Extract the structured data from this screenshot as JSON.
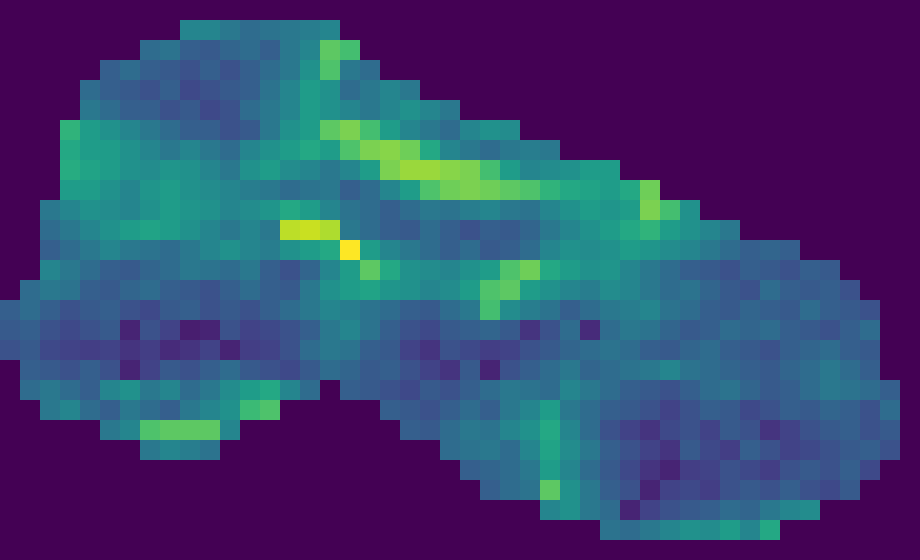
{
  "chart_data": {
    "type": "heatmap",
    "tick_labels": false,
    "zlim": [
      0,
      100
    ],
    "z": [
      [
        0,
        0,
        0,
        0,
        0,
        0,
        0,
        0,
        0,
        0,
        0,
        0,
        0,
        0,
        0,
        0,
        0,
        0,
        0,
        0,
        0,
        0,
        0,
        0,
        0,
        0,
        0,
        0,
        0,
        0,
        0,
        0,
        0,
        0,
        0,
        0,
        0,
        0,
        0,
        0,
        0,
        0,
        0,
        0,
        0,
        0
      ],
      [
        0,
        0,
        0,
        0,
        0,
        0,
        0,
        0,
        0,
        45,
        45,
        40,
        35,
        38,
        40,
        42,
        45,
        0,
        0,
        0,
        0,
        0,
        0,
        0,
        0,
        0,
        0,
        0,
        0,
        0,
        0,
        0,
        0,
        0,
        0,
        0,
        0,
        0,
        0,
        0,
        0,
        0,
        0,
        0,
        0,
        0
      ],
      [
        0,
        0,
        0,
        0,
        0,
        0,
        0,
        35,
        38,
        30,
        28,
        32,
        35,
        30,
        40,
        45,
        75,
        70,
        0,
        0,
        0,
        0,
        0,
        0,
        0,
        0,
        0,
        0,
        0,
        0,
        0,
        0,
        0,
        0,
        0,
        0,
        0,
        0,
        0,
        0,
        0,
        0,
        0,
        0,
        0,
        0
      ],
      [
        0,
        0,
        0,
        0,
        0,
        30,
        35,
        30,
        28,
        25,
        30,
        25,
        30,
        35,
        40,
        50,
        72,
        40,
        35,
        0,
        0,
        0,
        0,
        0,
        0,
        0,
        0,
        0,
        0,
        0,
        0,
        0,
        0,
        0,
        0,
        0,
        0,
        0,
        0,
        0,
        0,
        0,
        0,
        0,
        0,
        0
      ],
      [
        0,
        0,
        0,
        0,
        35,
        30,
        28,
        25,
        30,
        22,
        25,
        28,
        30,
        38,
        45,
        55,
        50,
        35,
        40,
        45,
        40,
        0,
        0,
        0,
        0,
        0,
        0,
        0,
        0,
        0,
        0,
        0,
        0,
        0,
        0,
        0,
        0,
        0,
        0,
        0,
        0,
        0,
        0,
        0,
        0,
        0
      ],
      [
        0,
        0,
        0,
        0,
        40,
        35,
        30,
        30,
        25,
        28,
        22,
        25,
        35,
        40,
        45,
        55,
        50,
        45,
        40,
        45,
        50,
        45,
        40,
        0,
        0,
        0,
        0,
        0,
        0,
        0,
        0,
        0,
        0,
        0,
        0,
        0,
        0,
        0,
        0,
        0,
        0,
        0,
        0,
        0,
        0,
        0
      ],
      [
        0,
        0,
        0,
        65,
        55,
        50,
        45,
        40,
        35,
        30,
        30,
        25,
        28,
        40,
        50,
        55,
        75,
        80,
        70,
        55,
        45,
        40,
        35,
        45,
        50,
        48,
        0,
        0,
        0,
        0,
        0,
        0,
        0,
        0,
        0,
        0,
        0,
        0,
        0,
        0,
        0,
        0,
        0,
        0,
        0,
        0
      ],
      [
        0,
        0,
        0,
        60,
        55,
        55,
        50,
        45,
        40,
        45,
        40,
        35,
        45,
        50,
        55,
        60,
        55,
        72,
        80,
        82,
        78,
        60,
        45,
        40,
        35,
        40,
        42,
        40,
        0,
        0,
        0,
        0,
        0,
        0,
        0,
        0,
        0,
        0,
        0,
        0,
        0,
        0,
        0,
        0,
        0,
        0
      ],
      [
        0,
        0,
        0,
        62,
        58,
        55,
        50,
        48,
        52,
        50,
        45,
        40,
        50,
        55,
        48,
        45,
        40,
        45,
        55,
        80,
        85,
        85,
        82,
        80,
        70,
        55,
        45,
        48,
        50,
        55,
        55,
        0,
        0,
        0,
        0,
        0,
        0,
        0,
        0,
        0,
        0,
        0,
        0,
        0,
        0,
        0
      ],
      [
        0,
        0,
        0,
        55,
        55,
        50,
        45,
        52,
        55,
        50,
        48,
        45,
        42,
        40,
        35,
        38,
        40,
        30,
        35,
        45,
        55,
        72,
        78,
        80,
        78,
        75,
        72,
        65,
        60,
        58,
        55,
        60,
        78,
        0,
        0,
        0,
        0,
        0,
        0,
        0,
        0,
        0,
        0,
        0,
        0,
        0
      ],
      [
        0,
        0,
        40,
        45,
        50,
        48,
        45,
        50,
        55,
        52,
        50,
        45,
        48,
        52,
        60,
        55,
        45,
        38,
        35,
        30,
        35,
        40,
        38,
        42,
        45,
        40,
        38,
        45,
        50,
        55,
        52,
        55,
        80,
        70,
        50,
        0,
        0,
        0,
        0,
        0,
        0,
        0,
        0,
        0,
        0,
        0
      ],
      [
        0,
        0,
        35,
        40,
        45,
        50,
        55,
        58,
        55,
        50,
        45,
        40,
        45,
        40,
        90,
        92,
        88,
        40,
        35,
        30,
        28,
        35,
        30,
        25,
        30,
        28,
        32,
        40,
        45,
        50,
        55,
        60,
        65,
        55,
        50,
        45,
        40,
        0,
        0,
        0,
        0,
        0,
        0,
        0,
        0,
        0
      ],
      [
        0,
        0,
        30,
        35,
        40,
        45,
        40,
        38,
        35,
        40,
        45,
        50,
        45,
        42,
        50,
        55,
        60,
        100,
        55,
        45,
        40,
        35,
        30,
        35,
        28,
        30,
        35,
        45,
        50,
        48,
        50,
        55,
        52,
        48,
        45,
        40,
        35,
        30,
        32,
        30,
        0,
        0,
        0,
        0,
        0,
        0
      ],
      [
        0,
        0,
        45,
        40,
        35,
        30,
        28,
        32,
        35,
        40,
        38,
        35,
        40,
        30,
        25,
        32,
        45,
        55,
        75,
        60,
        50,
        48,
        45,
        50,
        55,
        72,
        78,
        60,
        55,
        50,
        52,
        45,
        40,
        35,
        30,
        28,
        25,
        30,
        28,
        25,
        30,
        28,
        0,
        0,
        0,
        0
      ],
      [
        0,
        35,
        40,
        38,
        30,
        28,
        32,
        35,
        30,
        28,
        25,
        30,
        35,
        30,
        28,
        40,
        50,
        55,
        58,
        52,
        50,
        45,
        48,
        55,
        72,
        75,
        55,
        50,
        45,
        42,
        48,
        45,
        40,
        35,
        38,
        32,
        28,
        25,
        35,
        30,
        28,
        30,
        25,
        0,
        0,
        0
      ],
      [
        30,
        35,
        30,
        25,
        28,
        30,
        25,
        22,
        28,
        30,
        25,
        28,
        25,
        30,
        35,
        40,
        45,
        42,
        38,
        35,
        30,
        28,
        35,
        40,
        70,
        48,
        42,
        38,
        30,
        35,
        40,
        42,
        45,
        38,
        35,
        30,
        28,
        32,
        30,
        28,
        35,
        30,
        28,
        25,
        0,
        0
      ],
      [
        28,
        30,
        25,
        22,
        25,
        28,
        10,
        25,
        20,
        8,
        10,
        25,
        20,
        22,
        25,
        30,
        40,
        45,
        38,
        30,
        25,
        22,
        28,
        30,
        32,
        28,
        15,
        25,
        35,
        12,
        35,
        40,
        38,
        32,
        28,
        30,
        35,
        32,
        35,
        30,
        28,
        25,
        30,
        35,
        0,
        0
      ],
      [
        25,
        28,
        22,
        20,
        18,
        20,
        15,
        18,
        12,
        15,
        20,
        10,
        18,
        20,
        25,
        35,
        40,
        38,
        30,
        28,
        20,
        15,
        25,
        22,
        18,
        20,
        25,
        28,
        32,
        35,
        38,
        35,
        30,
        28,
        32,
        35,
        30,
        28,
        25,
        30,
        32,
        35,
        30,
        28,
        0,
        0
      ],
      [
        0,
        30,
        28,
        25,
        30,
        25,
        10,
        20,
        28,
        25,
        30,
        35,
        28,
        25,
        22,
        28,
        35,
        32,
        28,
        30,
        25,
        20,
        15,
        28,
        10,
        25,
        30,
        35,
        40,
        32,
        35,
        38,
        40,
        45,
        38,
        35,
        32,
        30,
        28,
        32,
        35,
        40,
        35,
        30,
        0,
        0
      ],
      [
        0,
        35,
        40,
        35,
        30,
        45,
        50,
        40,
        45,
        35,
        40,
        48,
        55,
        60,
        45,
        35,
        0,
        30,
        28,
        25,
        22,
        28,
        25,
        30,
        35,
        40,
        38,
        35,
        45,
        40,
        35,
        30,
        28,
        25,
        30,
        35,
        38,
        32,
        28,
        30,
        35,
        40,
        38,
        35,
        30,
        0
      ],
      [
        0,
        0,
        40,
        45,
        35,
        30,
        40,
        35,
        30,
        40,
        45,
        50,
        68,
        72,
        0,
        0,
        0,
        0,
        0,
        30,
        28,
        25,
        30,
        35,
        30,
        40,
        45,
        55,
        40,
        35,
        30,
        28,
        25,
        20,
        25,
        30,
        28,
        22,
        25,
        30,
        28,
        32,
        30,
        25,
        35,
        0
      ],
      [
        0,
        0,
        0,
        0,
        0,
        40,
        45,
        72,
        75,
        75,
        75,
        45,
        0,
        0,
        0,
        0,
        0,
        0,
        0,
        0,
        30,
        28,
        35,
        40,
        38,
        45,
        50,
        60,
        45,
        35,
        25,
        20,
        15,
        22,
        25,
        20,
        28,
        25,
        15,
        20,
        25,
        28,
        30,
        25,
        28,
        0
      ],
      [
        0,
        0,
        0,
        0,
        0,
        0,
        0,
        40,
        45,
        42,
        38,
        0,
        0,
        0,
        0,
        0,
        0,
        0,
        0,
        0,
        0,
        0,
        35,
        38,
        40,
        35,
        45,
        58,
        48,
        40,
        30,
        25,
        20,
        15,
        28,
        22,
        18,
        30,
        25,
        20,
        22,
        25,
        28,
        30,
        25,
        0
      ],
      [
        0,
        0,
        0,
        0,
        0,
        0,
        0,
        0,
        0,
        0,
        0,
        0,
        0,
        0,
        0,
        0,
        0,
        0,
        0,
        0,
        0,
        0,
        0,
        30,
        32,
        35,
        40,
        55,
        45,
        35,
        28,
        22,
        15,
        10,
        18,
        20,
        25,
        22,
        18,
        25,
        28,
        25,
        30,
        22,
        0,
        0
      ],
      [
        0,
        0,
        0,
        0,
        0,
        0,
        0,
        0,
        0,
        0,
        0,
        0,
        0,
        0,
        0,
        0,
        0,
        0,
        0,
        0,
        0,
        0,
        0,
        0,
        30,
        35,
        38,
        75,
        50,
        40,
        30,
        25,
        10,
        20,
        22,
        18,
        25,
        28,
        25,
        30,
        25,
        22,
        28,
        0,
        0,
        0
      ],
      [
        0,
        0,
        0,
        0,
        0,
        0,
        0,
        0,
        0,
        0,
        0,
        0,
        0,
        0,
        0,
        0,
        0,
        0,
        0,
        0,
        0,
        0,
        0,
        0,
        0,
        0,
        0,
        45,
        50,
        40,
        35,
        10,
        20,
        25,
        28,
        30,
        35,
        32,
        40,
        45,
        48,
        0,
        0,
        0,
        0,
        0
      ],
      [
        0,
        0,
        0,
        0,
        0,
        0,
        0,
        0,
        0,
        0,
        0,
        0,
        0,
        0,
        0,
        0,
        0,
        0,
        0,
        0,
        0,
        0,
        0,
        0,
        0,
        0,
        0,
        0,
        0,
        0,
        38,
        35,
        40,
        45,
        50,
        48,
        55,
        45,
        60,
        0,
        0,
        0,
        0,
        0,
        0,
        0
      ],
      [
        0,
        0,
        0,
        0,
        0,
        0,
        0,
        0,
        0,
        0,
        0,
        0,
        0,
        0,
        0,
        0,
        0,
        0,
        0,
        0,
        0,
        0,
        0,
        0,
        0,
        0,
        0,
        0,
        0,
        0,
        0,
        0,
        0,
        0,
        0,
        0,
        0,
        0,
        0,
        0,
        0,
        0,
        0,
        0,
        0,
        0
      ]
    ]
  }
}
